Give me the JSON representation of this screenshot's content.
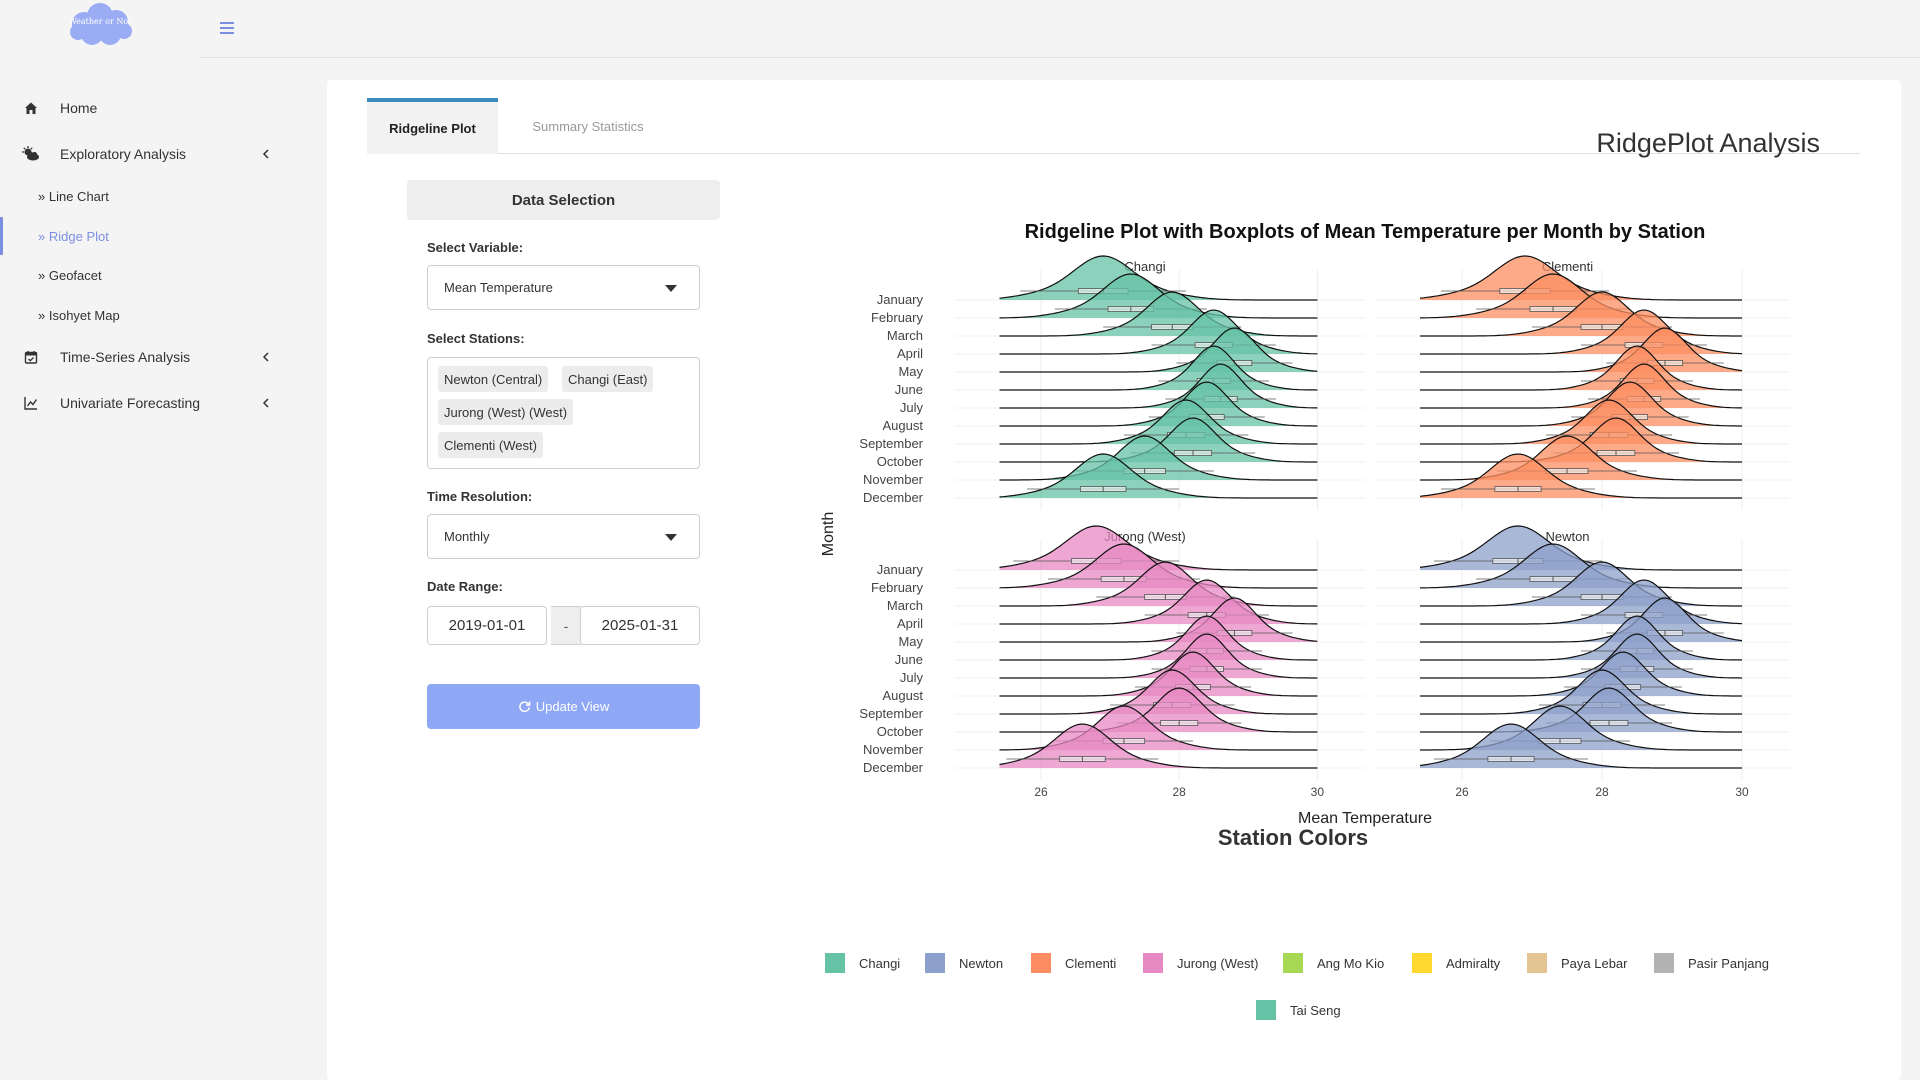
{
  "app": {
    "logo_text": "Weather or Not"
  },
  "sidebar": {
    "items": [
      {
        "label": "Home",
        "icon": "home-icon"
      },
      {
        "label": "Exploratory Analysis",
        "icon": "cloud-sun-icon"
      },
      {
        "label": "Time-Series Analysis",
        "icon": "calendar-icon"
      },
      {
        "label": "Univariate Forecasting",
        "icon": "line-chart-icon"
      }
    ],
    "sub_items": [
      {
        "label": "Line Chart"
      },
      {
        "label": "Ridge Plot"
      },
      {
        "label": "Geofacet"
      },
      {
        "label": "Isohyet Map"
      }
    ],
    "active_sub": "Ridge Plot"
  },
  "tabs": [
    {
      "label": "Ridgeline Plot"
    },
    {
      "label": "Summary Statistics"
    }
  ],
  "page_title": "RidgePlot Analysis",
  "controls": {
    "panel_title": "Data Selection",
    "variable_label": "Select Variable:",
    "variable_value": "Mean Temperature",
    "stations_label": "Select Stations:",
    "stations_selected": [
      "Newton (Central)",
      "Changi (East)",
      "Jurong (West) (West)",
      "Clementi (West)"
    ],
    "resolution_label": "Time Resolution:",
    "resolution_value": "Monthly",
    "date_label": "Date Range:",
    "date_start": "2019-01-01",
    "date_sep": "-",
    "date_end": "2025-01-31",
    "update_label": "Update View"
  },
  "chart_data": {
    "type": "ridgeline",
    "title": "Ridgeline Plot with Boxplots of Mean Temperature per Month by Station",
    "xlabel": "Mean Temperature",
    "ylabel": "Month",
    "months": [
      "January",
      "February",
      "March",
      "April",
      "May",
      "June",
      "July",
      "August",
      "September",
      "October",
      "November",
      "December"
    ],
    "xticks": [
      26,
      28,
      30
    ],
    "panels": [
      {
        "name": "Changi",
        "color": "#66c2a5",
        "xlim": [
          24.9,
          30.4
        ],
        "means": [
          26.9,
          27.3,
          27.9,
          28.5,
          28.8,
          28.5,
          28.6,
          28.4,
          28.1,
          28.2,
          27.5,
          26.9
        ],
        "sd": [
          0.6,
          0.55,
          0.5,
          0.45,
          0.42,
          0.4,
          0.4,
          0.42,
          0.45,
          0.45,
          0.5,
          0.55
        ]
      },
      {
        "name": "Clementi",
        "color": "#fc8d62",
        "xlim": [
          24.9,
          30.4
        ],
        "means": [
          26.9,
          27.3,
          28.0,
          28.6,
          28.9,
          28.5,
          28.6,
          28.4,
          28.1,
          28.2,
          27.5,
          26.8
        ],
        "sd": [
          0.6,
          0.55,
          0.5,
          0.45,
          0.42,
          0.4,
          0.4,
          0.42,
          0.45,
          0.45,
          0.5,
          0.55
        ]
      },
      {
        "name": "Jurong (West)",
        "color": "#e78ac3",
        "xlim": [
          24.9,
          30.4
        ],
        "means": [
          26.8,
          27.2,
          27.8,
          28.4,
          28.8,
          28.4,
          28.4,
          28.2,
          27.9,
          28.0,
          27.2,
          26.6
        ],
        "sd": [
          0.6,
          0.55,
          0.5,
          0.45,
          0.42,
          0.4,
          0.4,
          0.42,
          0.45,
          0.45,
          0.5,
          0.55
        ]
      },
      {
        "name": "Newton",
        "color": "#8da0cb",
        "xlim": [
          24.9,
          30.4
        ],
        "means": [
          26.8,
          27.3,
          28.0,
          28.6,
          28.9,
          28.5,
          28.5,
          28.3,
          28.0,
          28.1,
          27.4,
          26.7
        ],
        "sd": [
          0.6,
          0.55,
          0.5,
          0.45,
          0.42,
          0.4,
          0.4,
          0.42,
          0.45,
          0.45,
          0.5,
          0.55
        ]
      }
    ]
  },
  "legend": {
    "title": "Station Colors",
    "items": [
      {
        "label": "Changi",
        "color": "#66c2a5"
      },
      {
        "label": "Newton",
        "color": "#8da0cb"
      },
      {
        "label": "Clementi",
        "color": "#fc8d62"
      },
      {
        "label": "Jurong (West)",
        "color": "#e78ac3"
      },
      {
        "label": "Ang Mo Kio",
        "color": "#a6d854"
      },
      {
        "label": "Admiralty",
        "color": "#ffd92f"
      },
      {
        "label": "Paya Lebar",
        "color": "#e5c494"
      },
      {
        "label": "Pasir Panjang",
        "color": "#b3b3b3"
      },
      {
        "label": "Tai Seng",
        "color": "#66c2a5"
      }
    ]
  }
}
